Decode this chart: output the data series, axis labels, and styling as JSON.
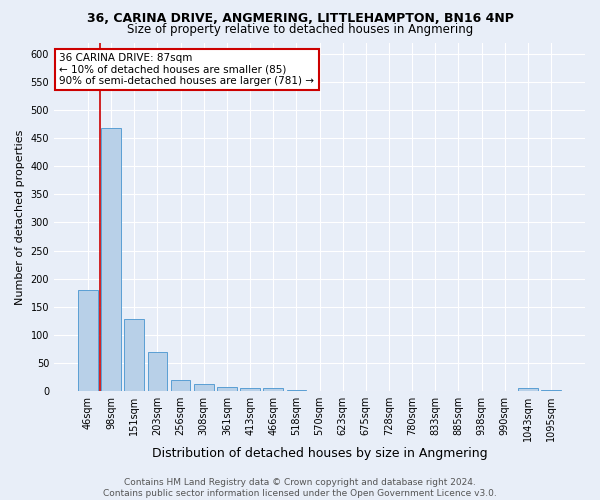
{
  "title": "36, CARINA DRIVE, ANGMERING, LITTLEHAMPTON, BN16 4NP",
  "subtitle": "Size of property relative to detached houses in Angmering",
  "xlabel": "Distribution of detached houses by size in Angmering",
  "ylabel": "Number of detached properties",
  "categories": [
    "46sqm",
    "98sqm",
    "151sqm",
    "203sqm",
    "256sqm",
    "308sqm",
    "361sqm",
    "413sqm",
    "466sqm",
    "518sqm",
    "570sqm",
    "623sqm",
    "675sqm",
    "728sqm",
    "780sqm",
    "833sqm",
    "885sqm",
    "938sqm",
    "990sqm",
    "1043sqm",
    "1095sqm"
  ],
  "values": [
    180,
    468,
    128,
    70,
    20,
    13,
    7,
    5,
    5,
    2,
    0,
    0,
    0,
    0,
    0,
    0,
    0,
    0,
    0,
    5,
    2
  ],
  "bar_color": "#b8d0e8",
  "bar_edge_color": "#5a9fd4",
  "highlight_color": "#cc0000",
  "annotation_text": "36 CARINA DRIVE: 87sqm\n← 10% of detached houses are smaller (85)\n90% of semi-detached houses are larger (781) →",
  "annotation_box_color": "#ffffff",
  "annotation_box_edge": "#cc0000",
  "ylim": [
    0,
    620
  ],
  "yticks": [
    0,
    50,
    100,
    150,
    200,
    250,
    300,
    350,
    400,
    450,
    500,
    550,
    600
  ],
  "background_color": "#e8eef8",
  "grid_color": "#ffffff",
  "footer_line1": "Contains HM Land Registry data © Crown copyright and database right 2024.",
  "footer_line2": "Contains public sector information licensed under the Open Government Licence v3.0.",
  "title_fontsize": 9,
  "subtitle_fontsize": 8.5,
  "xlabel_fontsize": 9,
  "ylabel_fontsize": 8,
  "tick_fontsize": 7,
  "footer_fontsize": 6.5
}
